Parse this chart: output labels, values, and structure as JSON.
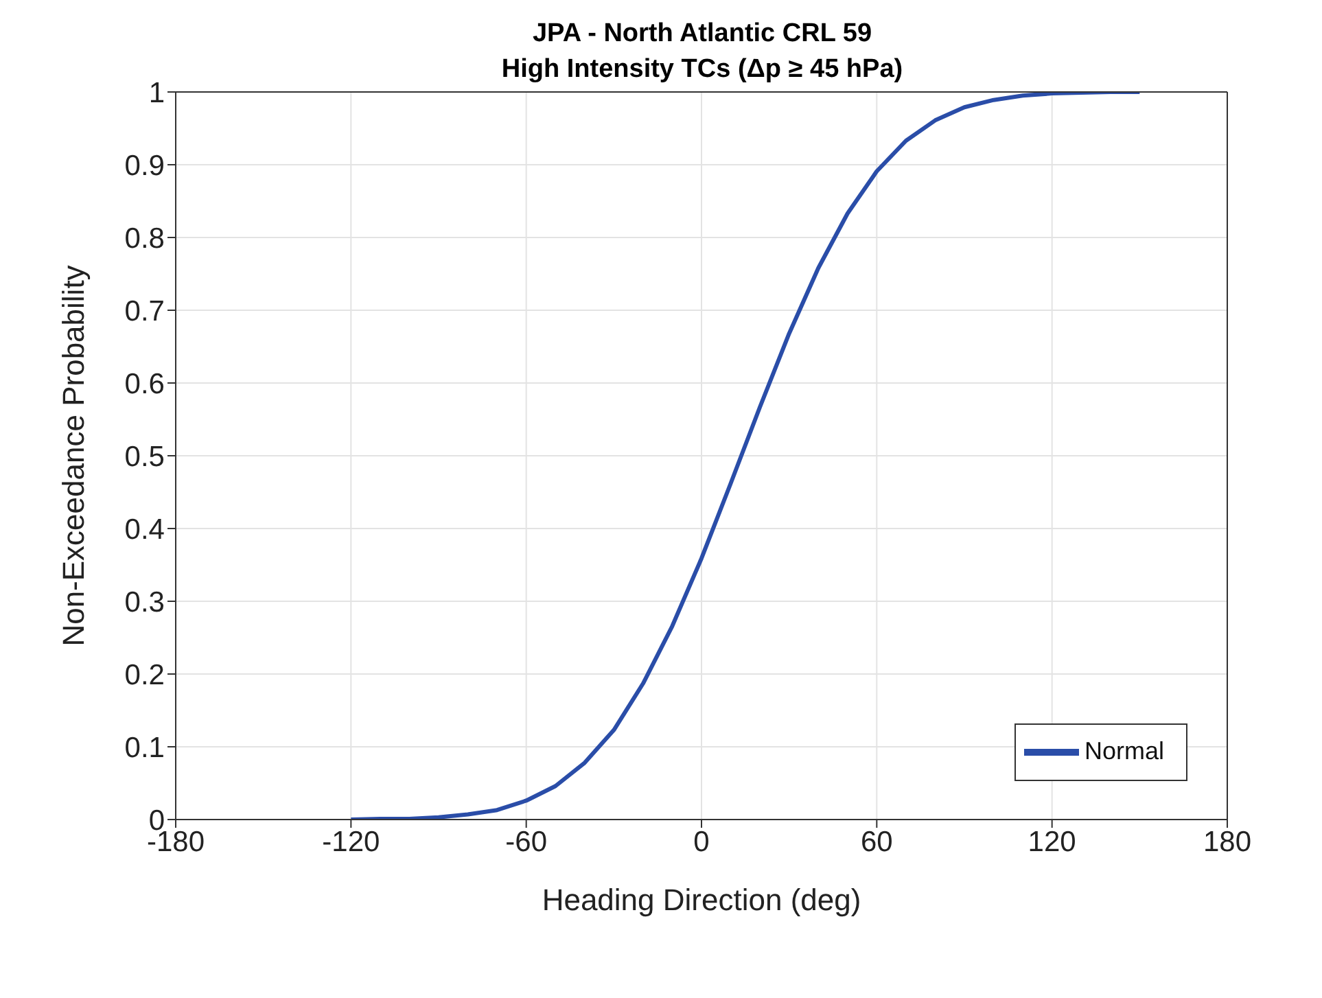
{
  "chart_data": {
    "type": "line",
    "title": "JPA - North Atlantic CRL 59",
    "subtitle": "High Intensity TCs (Δp ≥ 45 hPa)",
    "xlabel": "Heading Direction (deg)",
    "ylabel": "Non-Exceedance Probability",
    "x": [
      -120,
      -110,
      -100,
      -90,
      -80,
      -70,
      -60,
      -50,
      -40,
      -30,
      -20,
      -10,
      0,
      10,
      20,
      30,
      40,
      50,
      60,
      70,
      80,
      90,
      100,
      110,
      120,
      130,
      140,
      150
    ],
    "series": [
      {
        "name": "Normal",
        "color": "#2a4da8",
        "values": [
          0.0,
          0.001,
          0.001,
          0.003,
          0.007,
          0.013,
          0.026,
          0.046,
          0.078,
          0.123,
          0.187,
          0.266,
          0.359,
          0.462,
          0.567,
          0.668,
          0.758,
          0.833,
          0.891,
          0.933,
          0.961,
          0.979,
          0.989,
          0.995,
          0.998,
          0.999,
          1.0,
          1.0
        ]
      }
    ],
    "xlim": [
      -180,
      180
    ],
    "xticks": [
      -180,
      -120,
      -60,
      0,
      60,
      120,
      180
    ],
    "ylim": [
      0,
      1
    ],
    "yticks": [
      0,
      0.1,
      0.2,
      0.3,
      0.4,
      0.5,
      0.6,
      0.7,
      0.8,
      0.9,
      1
    ],
    "grid": true,
    "legend": "bottom right",
    "marker": "none",
    "line_style": "solid"
  }
}
